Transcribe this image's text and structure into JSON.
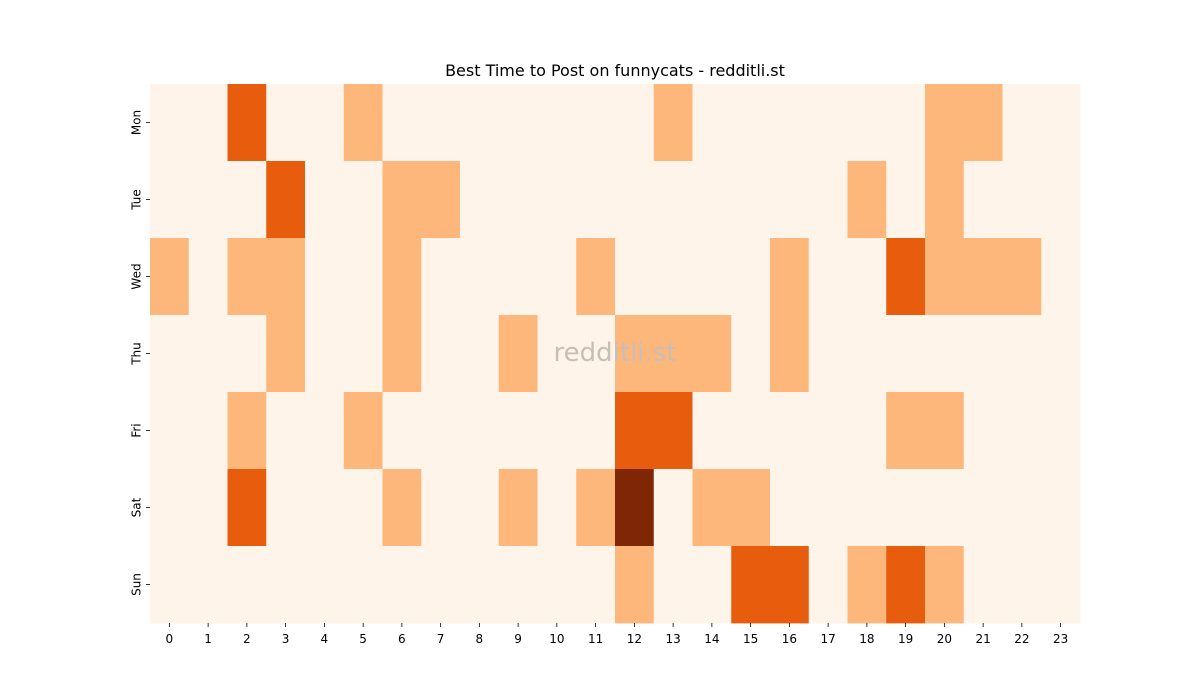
{
  "chart_data": {
    "type": "heatmap",
    "title": "Best Time to Post on funnycats - redditli.st",
    "xlabel": "",
    "ylabel": "",
    "x_categories": [
      "0",
      "1",
      "2",
      "3",
      "4",
      "5",
      "6",
      "7",
      "8",
      "9",
      "10",
      "11",
      "12",
      "13",
      "14",
      "15",
      "16",
      "17",
      "18",
      "19",
      "20",
      "21",
      "22",
      "23"
    ],
    "y_categories": [
      "Mon",
      "Tue",
      "Wed",
      "Thu",
      "Fri",
      "Sat",
      "Sun"
    ],
    "values": [
      [
        0,
        0,
        2,
        0,
        0,
        1,
        0,
        0,
        0,
        0,
        0,
        0,
        0,
        1,
        0,
        0,
        0,
        0,
        0,
        0,
        1,
        1,
        0,
        0
      ],
      [
        0,
        0,
        0,
        2,
        0,
        0,
        1,
        1,
        0,
        0,
        0,
        0,
        0,
        0,
        0,
        0,
        0,
        0,
        1,
        0,
        1,
        0,
        0,
        0
      ],
      [
        1,
        0,
        1,
        1,
        0,
        0,
        1,
        0,
        0,
        0,
        0,
        1,
        0,
        0,
        0,
        0,
        1,
        0,
        0,
        2,
        1,
        1,
        1,
        0
      ],
      [
        0,
        0,
        0,
        1,
        0,
        0,
        1,
        0,
        0,
        1,
        0,
        0,
        1,
        1,
        1,
        0,
        1,
        0,
        0,
        0,
        0,
        0,
        0,
        0
      ],
      [
        0,
        0,
        1,
        0,
        0,
        1,
        0,
        0,
        0,
        0,
        0,
        0,
        2,
        2,
        0,
        0,
        0,
        0,
        0,
        1,
        1,
        0,
        0,
        0
      ],
      [
        0,
        0,
        2,
        0,
        0,
        0,
        1,
        0,
        0,
        1,
        0,
        1,
        3,
        0,
        1,
        1,
        0,
        0,
        0,
        0,
        0,
        0,
        0,
        0
      ],
      [
        0,
        0,
        0,
        0,
        0,
        0,
        0,
        0,
        0,
        0,
        0,
        0,
        1,
        0,
        0,
        2,
        2,
        0,
        1,
        2,
        1,
        0,
        0,
        0
      ]
    ],
    "value_range": [
      0,
      3
    ],
    "colors": [
      "#fff4e9",
      "#fdb77b",
      "#e85d0d",
      "#7f2704"
    ],
    "grid": false,
    "legend": "none",
    "watermark": "redditli.st"
  }
}
